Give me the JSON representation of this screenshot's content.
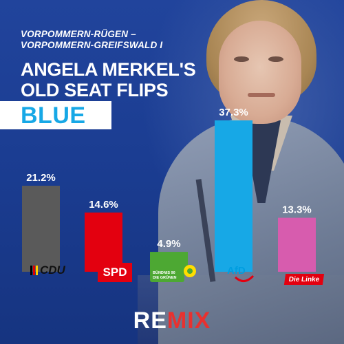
{
  "headline": {
    "subhead": "VORPOMMERN-RÜGEN –\nVORPOMMERN-GREIFSWALD I",
    "title": "ANGELA MERKEL'S\nOLD SEAT FLIPS",
    "highlight": "BLUE"
  },
  "parties": {
    "cdu": "CDU",
    "spd": "SPD",
    "greens_line1": "BÜNDNIS 90",
    "greens_line2": "DIE GRÜNEN",
    "afd": "AfD",
    "linke": "Die Linke"
  },
  "brand": {
    "re": "RE",
    "mix": "MIX"
  },
  "colors": {
    "background": "#1b3d92",
    "highlight": "#17a8e6",
    "brand_red": "#e8312f"
  },
  "chart_data": {
    "type": "bar",
    "title": "",
    "xlabel": "",
    "ylabel": "",
    "grid": false,
    "ylim": [
      0,
      37.3
    ],
    "categories": [
      "CDU",
      "SPD",
      "Grüne",
      "AfD",
      "Die Linke"
    ],
    "values": [
      21.2,
      14.6,
      4.9,
      37.3,
      13.3
    ],
    "value_labels": [
      "21.2%",
      "14.6%",
      "4.9%",
      "37.3%",
      "13.3%"
    ],
    "colors": [
      "#5a5a5a",
      "#e3000f",
      "#4da833",
      "#17a8e6",
      "#d75cae"
    ]
  }
}
